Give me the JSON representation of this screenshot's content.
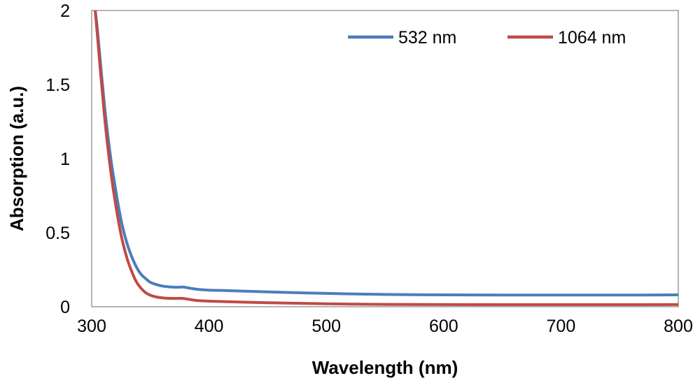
{
  "chart_data": {
    "type": "line",
    "xlabel": "Wavelength (nm)",
    "ylabel": "Absorption (a.u.)",
    "xlim": [
      300,
      800
    ],
    "ylim": [
      0,
      2
    ],
    "xticks": [
      300,
      400,
      500,
      600,
      700,
      800
    ],
    "yticks": [
      0,
      0.5,
      1,
      1.5,
      2
    ],
    "ytick_labels": [
      "0",
      "0.5",
      "1",
      "1.5",
      "2"
    ],
    "xtick_labels": [
      "300",
      "400",
      "500",
      "600",
      "700",
      "800"
    ],
    "grid": false,
    "legend_position": "top-right",
    "series": [
      {
        "name": "532 nm",
        "color": "#4a7ebb",
        "x": [
          303,
          305,
          308,
          311,
          314,
          317,
          320,
          323,
          326,
          330,
          334,
          338,
          342,
          346,
          350,
          355,
          360,
          365,
          370,
          375,
          378,
          382,
          386,
          390,
          400,
          420,
          450,
          500,
          550,
          600,
          650,
          700,
          750,
          800
        ],
        "y": [
          2.0,
          1.86,
          1.6,
          1.35,
          1.14,
          0.96,
          0.81,
          0.67,
          0.55,
          0.43,
          0.34,
          0.27,
          0.22,
          0.19,
          0.165,
          0.15,
          0.14,
          0.135,
          0.132,
          0.132,
          0.133,
          0.128,
          0.122,
          0.118,
          0.112,
          0.108,
          0.1,
          0.09,
          0.083,
          0.08,
          0.079,
          0.079,
          0.079,
          0.08
        ]
      },
      {
        "name": "1064 nm",
        "color": "#be4b48",
        "x": [
          303,
          305,
          308,
          311,
          314,
          317,
          320,
          323,
          326,
          330,
          334,
          338,
          342,
          346,
          350,
          355,
          360,
          365,
          370,
          375,
          378,
          382,
          386,
          390,
          400,
          420,
          450,
          500,
          550,
          600,
          650,
          700,
          750,
          800
        ],
        "y": [
          2.0,
          1.82,
          1.54,
          1.28,
          1.06,
          0.87,
          0.71,
          0.57,
          0.45,
          0.33,
          0.24,
          0.17,
          0.125,
          0.095,
          0.078,
          0.066,
          0.06,
          0.057,
          0.056,
          0.057,
          0.056,
          0.051,
          0.046,
          0.042,
          0.038,
          0.033,
          0.027,
          0.02,
          0.016,
          0.015,
          0.014,
          0.014,
          0.014,
          0.015
        ]
      }
    ]
  }
}
